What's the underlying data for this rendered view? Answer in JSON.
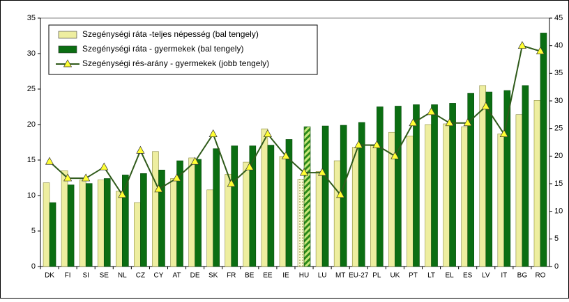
{
  "chart_data": {
    "type": "bar-line",
    "categories": [
      "DK",
      "FI",
      "SI",
      "SE",
      "NL",
      "CZ",
      "CY",
      "AT",
      "DE",
      "SK",
      "FR",
      "BE",
      "EE",
      "IE",
      "HU",
      "LU",
      "MT",
      "EU-27",
      "PL",
      "UK",
      "PT",
      "LT",
      "EL",
      "ES",
      "LV",
      "IT",
      "BG",
      "RO"
    ],
    "series": [
      {
        "name": "Szegénységi ráta -teljes népesség (bal tengely)",
        "type": "bar",
        "color": "#eeeea0",
        "values": [
          11.8,
          13.5,
          12.2,
          12.2,
          10.6,
          9.0,
          16.2,
          12.4,
          15.3,
          10.8,
          13.0,
          14.7,
          19.4,
          15.5,
          12.3,
          13.4,
          14.9,
          16.8,
          17.0,
          18.9,
          18.4,
          20.0,
          20.1,
          19.7,
          25.5,
          18.7,
          21.4,
          23.4
        ]
      },
      {
        "name": "Szegénységi ráta - gyermekek (bal tengely)",
        "type": "bar",
        "color": "#0b6e12",
        "values": [
          9.0,
          11.5,
          11.7,
          12.4,
          12.9,
          13.1,
          13.6,
          14.9,
          15.1,
          16.6,
          17.0,
          17.0,
          17.1,
          17.9,
          19.7,
          19.8,
          19.9,
          20.3,
          22.5,
          22.6,
          22.8,
          22.8,
          23.0,
          24.4,
          24.6,
          24.8,
          25.5,
          32.9
        ]
      },
      {
        "name": "Szegénységi rés-arány - gyermekek (jobb tengely)",
        "type": "line",
        "axis": "y2",
        "color": "#2f5a1a",
        "marker_color": "#ffff33",
        "values": [
          19,
          16,
          16,
          18,
          13,
          21,
          14,
          16,
          19,
          24,
          15,
          18,
          24,
          20,
          17,
          17,
          13,
          22,
          22,
          20,
          26,
          28,
          26,
          26,
          29,
          24,
          40,
          39
        ]
      }
    ],
    "highlight": "HU",
    "ylim": [
      0,
      35
    ],
    "yticks": [
      0,
      5,
      10,
      15,
      20,
      25,
      30,
      35
    ],
    "y2lim": [
      0,
      45
    ],
    "y2ticks": [
      0,
      5,
      10,
      15,
      20,
      25,
      30,
      35,
      40,
      45
    ],
    "legend": "top-left",
    "grid": false
  }
}
